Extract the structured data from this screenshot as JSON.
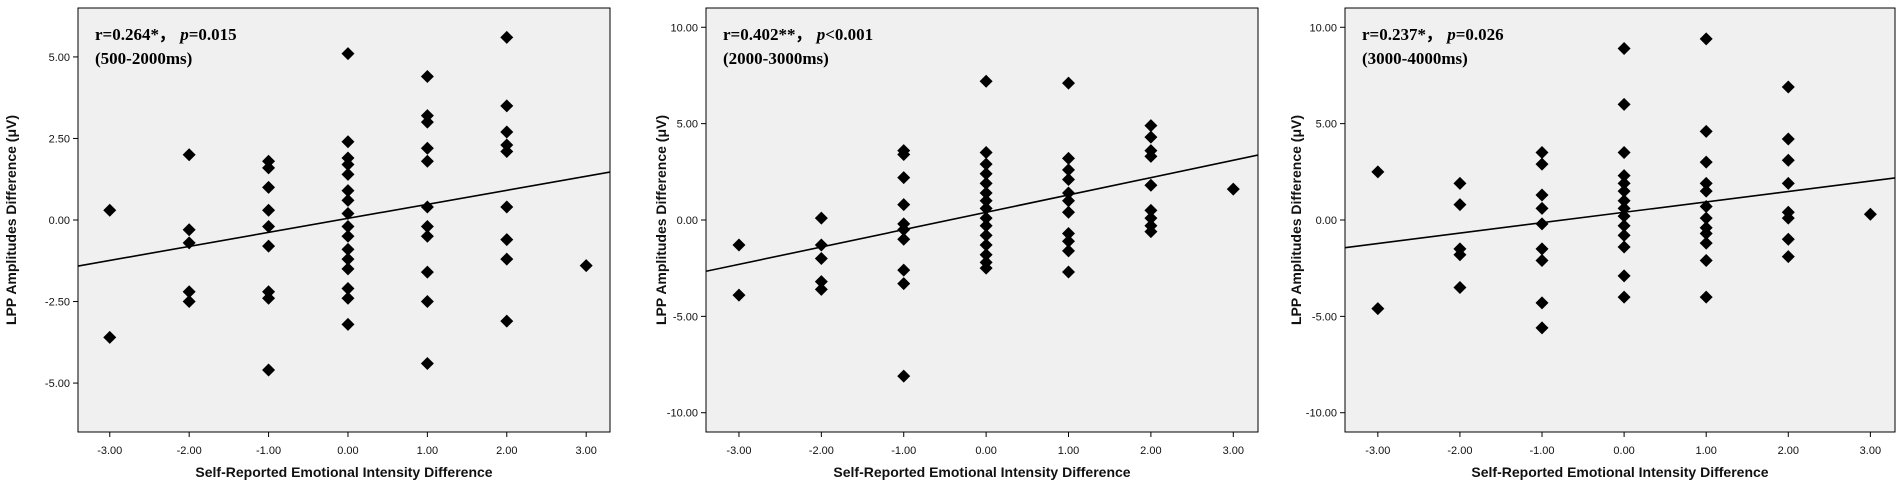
{
  "chart_data": [
    {
      "type": "scatter",
      "annotation": {
        "r_text": "r=0.264*，",
        "p_label": "p",
        "p_value": "=0.015",
        "window": "(500-2000ms)"
      },
      "xlabel": "Self-Reported Emotional Intensity Difference",
      "ylabel": "LPP Amplitudes Difference (μV)",
      "xlim": [
        -3.4,
        3.3
      ],
      "ylim": [
        -6.5,
        6.5
      ],
      "x_ticks": [
        "-3.00",
        "-2.00",
        "-1.00",
        "0.00",
        "1.00",
        "2.00",
        "3.00"
      ],
      "y_ticks": [
        "-5.00",
        "-2.50",
        "0.00",
        "2.50",
        "5.00"
      ],
      "y_tick_values": [
        -5,
        -2.5,
        0,
        2.5,
        5
      ],
      "fit_line": {
        "intercept": 0.05,
        "slope": 0.43
      },
      "points": [
        [
          -3,
          0.3
        ],
        [
          -3,
          -3.6
        ],
        [
          -2,
          2.0
        ],
        [
          -2,
          -0.3
        ],
        [
          -2,
          -0.7
        ],
        [
          -2,
          -2.2
        ],
        [
          -2,
          -2.5
        ],
        [
          -1,
          1.8
        ],
        [
          -1,
          1.6
        ],
        [
          -1,
          1.0
        ],
        [
          -1,
          0.3
        ],
        [
          -1,
          -0.2
        ],
        [
          -1,
          -0.8
        ],
        [
          -1,
          -2.2
        ],
        [
          -1,
          -2.4
        ],
        [
          -1,
          -4.6
        ],
        [
          0,
          5.1
        ],
        [
          0,
          2.4
        ],
        [
          0,
          1.9
        ],
        [
          0,
          1.7
        ],
        [
          0,
          1.4
        ],
        [
          0,
          0.9
        ],
        [
          0,
          0.6
        ],
        [
          0,
          0.2
        ],
        [
          0,
          -0.2
        ],
        [
          0,
          -0.5
        ],
        [
          0,
          -0.9
        ],
        [
          0,
          -1.2
        ],
        [
          0,
          -1.5
        ],
        [
          0,
          -2.1
        ],
        [
          0,
          -2.4
        ],
        [
          0,
          -3.2
        ],
        [
          1,
          4.4
        ],
        [
          1,
          3.2
        ],
        [
          1,
          3.0
        ],
        [
          1,
          2.2
        ],
        [
          1,
          1.8
        ],
        [
          1,
          0.4
        ],
        [
          1,
          -0.2
        ],
        [
          1,
          -0.5
        ],
        [
          1,
          -1.6
        ],
        [
          1,
          -2.5
        ],
        [
          1,
          -4.4
        ],
        [
          2,
          5.6
        ],
        [
          2,
          3.5
        ],
        [
          2,
          2.7
        ],
        [
          2,
          2.3
        ],
        [
          2,
          2.1
        ],
        [
          2,
          0.4
        ],
        [
          2,
          -0.6
        ],
        [
          2,
          -1.2
        ],
        [
          2,
          -3.1
        ],
        [
          3,
          -1.4
        ]
      ]
    },
    {
      "type": "scatter",
      "annotation": {
        "r_text": "r=0.402**，",
        "p_label": "p",
        "p_value": "<0.001",
        "window": "(2000-3000ms)"
      },
      "xlabel": "Self-Reported Emotional Intensity Difference",
      "ylabel": "LPP Amplitudes Difference (μV)",
      "xlim": [
        -3.4,
        3.3
      ],
      "ylim": [
        -11,
        11
      ],
      "x_ticks": [
        "-3.00",
        "-2.00",
        "-1.00",
        "0.00",
        "1.00",
        "2.00",
        "3.00"
      ],
      "y_ticks": [
        "-10.00",
        "-5.00",
        "0.00",
        "5.00",
        "10.00"
      ],
      "y_tick_values": [
        -10,
        -5,
        0,
        5,
        10
      ],
      "fit_line": {
        "intercept": 0.4,
        "slope": 0.9
      },
      "points": [
        [
          -3,
          -1.3
        ],
        [
          -3,
          -3.9
        ],
        [
          -2,
          0.1
        ],
        [
          -2,
          -1.3
        ],
        [
          -2,
          -2.0
        ],
        [
          -2,
          -3.2
        ],
        [
          -2,
          -3.6
        ],
        [
          -1,
          3.6
        ],
        [
          -1,
          3.4
        ],
        [
          -1,
          2.2
        ],
        [
          -1,
          0.8
        ],
        [
          -1,
          -0.2
        ],
        [
          -1,
          -0.5
        ],
        [
          -1,
          -1.0
        ],
        [
          -1,
          -2.6
        ],
        [
          -1,
          -3.3
        ],
        [
          -1,
          -8.1
        ],
        [
          0,
          7.2
        ],
        [
          0,
          3.5
        ],
        [
          0,
          2.9
        ],
        [
          0,
          2.4
        ],
        [
          0,
          1.9
        ],
        [
          0,
          1.4
        ],
        [
          0,
          1.0
        ],
        [
          0,
          0.6
        ],
        [
          0,
          0.1
        ],
        [
          0,
          -0.3
        ],
        [
          0,
          -0.8
        ],
        [
          0,
          -1.3
        ],
        [
          0,
          -1.8
        ],
        [
          0,
          -2.2
        ],
        [
          0,
          -2.5
        ],
        [
          1,
          7.1
        ],
        [
          1,
          3.2
        ],
        [
          1,
          2.6
        ],
        [
          1,
          2.1
        ],
        [
          1,
          1.4
        ],
        [
          1,
          1.0
        ],
        [
          1,
          0.4
        ],
        [
          1,
          -0.7
        ],
        [
          1,
          -1.1
        ],
        [
          1,
          -1.6
        ],
        [
          1,
          -2.7
        ],
        [
          2,
          4.9
        ],
        [
          2,
          4.3
        ],
        [
          2,
          3.6
        ],
        [
          2,
          3.3
        ],
        [
          2,
          1.8
        ],
        [
          2,
          0.5
        ],
        [
          2,
          0.1
        ],
        [
          2,
          -0.3
        ],
        [
          2,
          -0.6
        ],
        [
          3,
          1.6
        ]
      ]
    },
    {
      "type": "scatter",
      "annotation": {
        "r_text": "r=0.237*，",
        "p_label": "p",
        "p_value": "=0.026",
        "window": "(3000-4000ms)"
      },
      "xlabel": "Self-Reported Emotional Intensity Difference",
      "ylabel": "LPP Amplitudes Difference (μV)",
      "xlim": [
        -3.4,
        3.3
      ],
      "ylim": [
        -11,
        11
      ],
      "x_ticks": [
        "-3.00",
        "-2.00",
        "-1.00",
        "0.00",
        "1.00",
        "2.00",
        "3.00"
      ],
      "y_ticks": [
        "-10.00",
        "-5.00",
        "0.00",
        "5.00",
        "10.00"
      ],
      "y_tick_values": [
        -10,
        -5,
        0,
        5,
        10
      ],
      "fit_line": {
        "intercept": 0.4,
        "slope": 0.54
      },
      "points": [
        [
          -3,
          2.5
        ],
        [
          -3,
          -4.6
        ],
        [
          -2,
          1.9
        ],
        [
          -2,
          0.8
        ],
        [
          -2,
          -1.5
        ],
        [
          -2,
          -1.8
        ],
        [
          -2,
          -3.5
        ],
        [
          -1,
          3.5
        ],
        [
          -1,
          2.9
        ],
        [
          -1,
          1.3
        ],
        [
          -1,
          0.6
        ],
        [
          -1,
          -0.2
        ],
        [
          -1,
          -1.5
        ],
        [
          -1,
          -2.1
        ],
        [
          -1,
          -4.3
        ],
        [
          -1,
          -5.6
        ],
        [
          0,
          8.9
        ],
        [
          0,
          6.0
        ],
        [
          0,
          3.5
        ],
        [
          0,
          2.3
        ],
        [
          0,
          1.9
        ],
        [
          0,
          1.5
        ],
        [
          0,
          1.0
        ],
        [
          0,
          0.6
        ],
        [
          0,
          0.2
        ],
        [
          0,
          -0.3
        ],
        [
          0,
          -0.8
        ],
        [
          0,
          -1.4
        ],
        [
          0,
          -2.9
        ],
        [
          0,
          -4.0
        ],
        [
          1,
          9.4
        ],
        [
          1,
          4.6
        ],
        [
          1,
          3.0
        ],
        [
          1,
          1.9
        ],
        [
          1,
          1.5
        ],
        [
          1,
          0.7
        ],
        [
          1,
          0.1
        ],
        [
          1,
          -0.4
        ],
        [
          1,
          -0.7
        ],
        [
          1,
          -1.2
        ],
        [
          1,
          -2.1
        ],
        [
          1,
          -4.0
        ],
        [
          2,
          6.9
        ],
        [
          2,
          4.2
        ],
        [
          2,
          3.1
        ],
        [
          2,
          1.9
        ],
        [
          2,
          0.4
        ],
        [
          2,
          0.1
        ],
        [
          2,
          -1.0
        ],
        [
          2,
          -1.9
        ],
        [
          3,
          0.3
        ]
      ]
    }
  ]
}
